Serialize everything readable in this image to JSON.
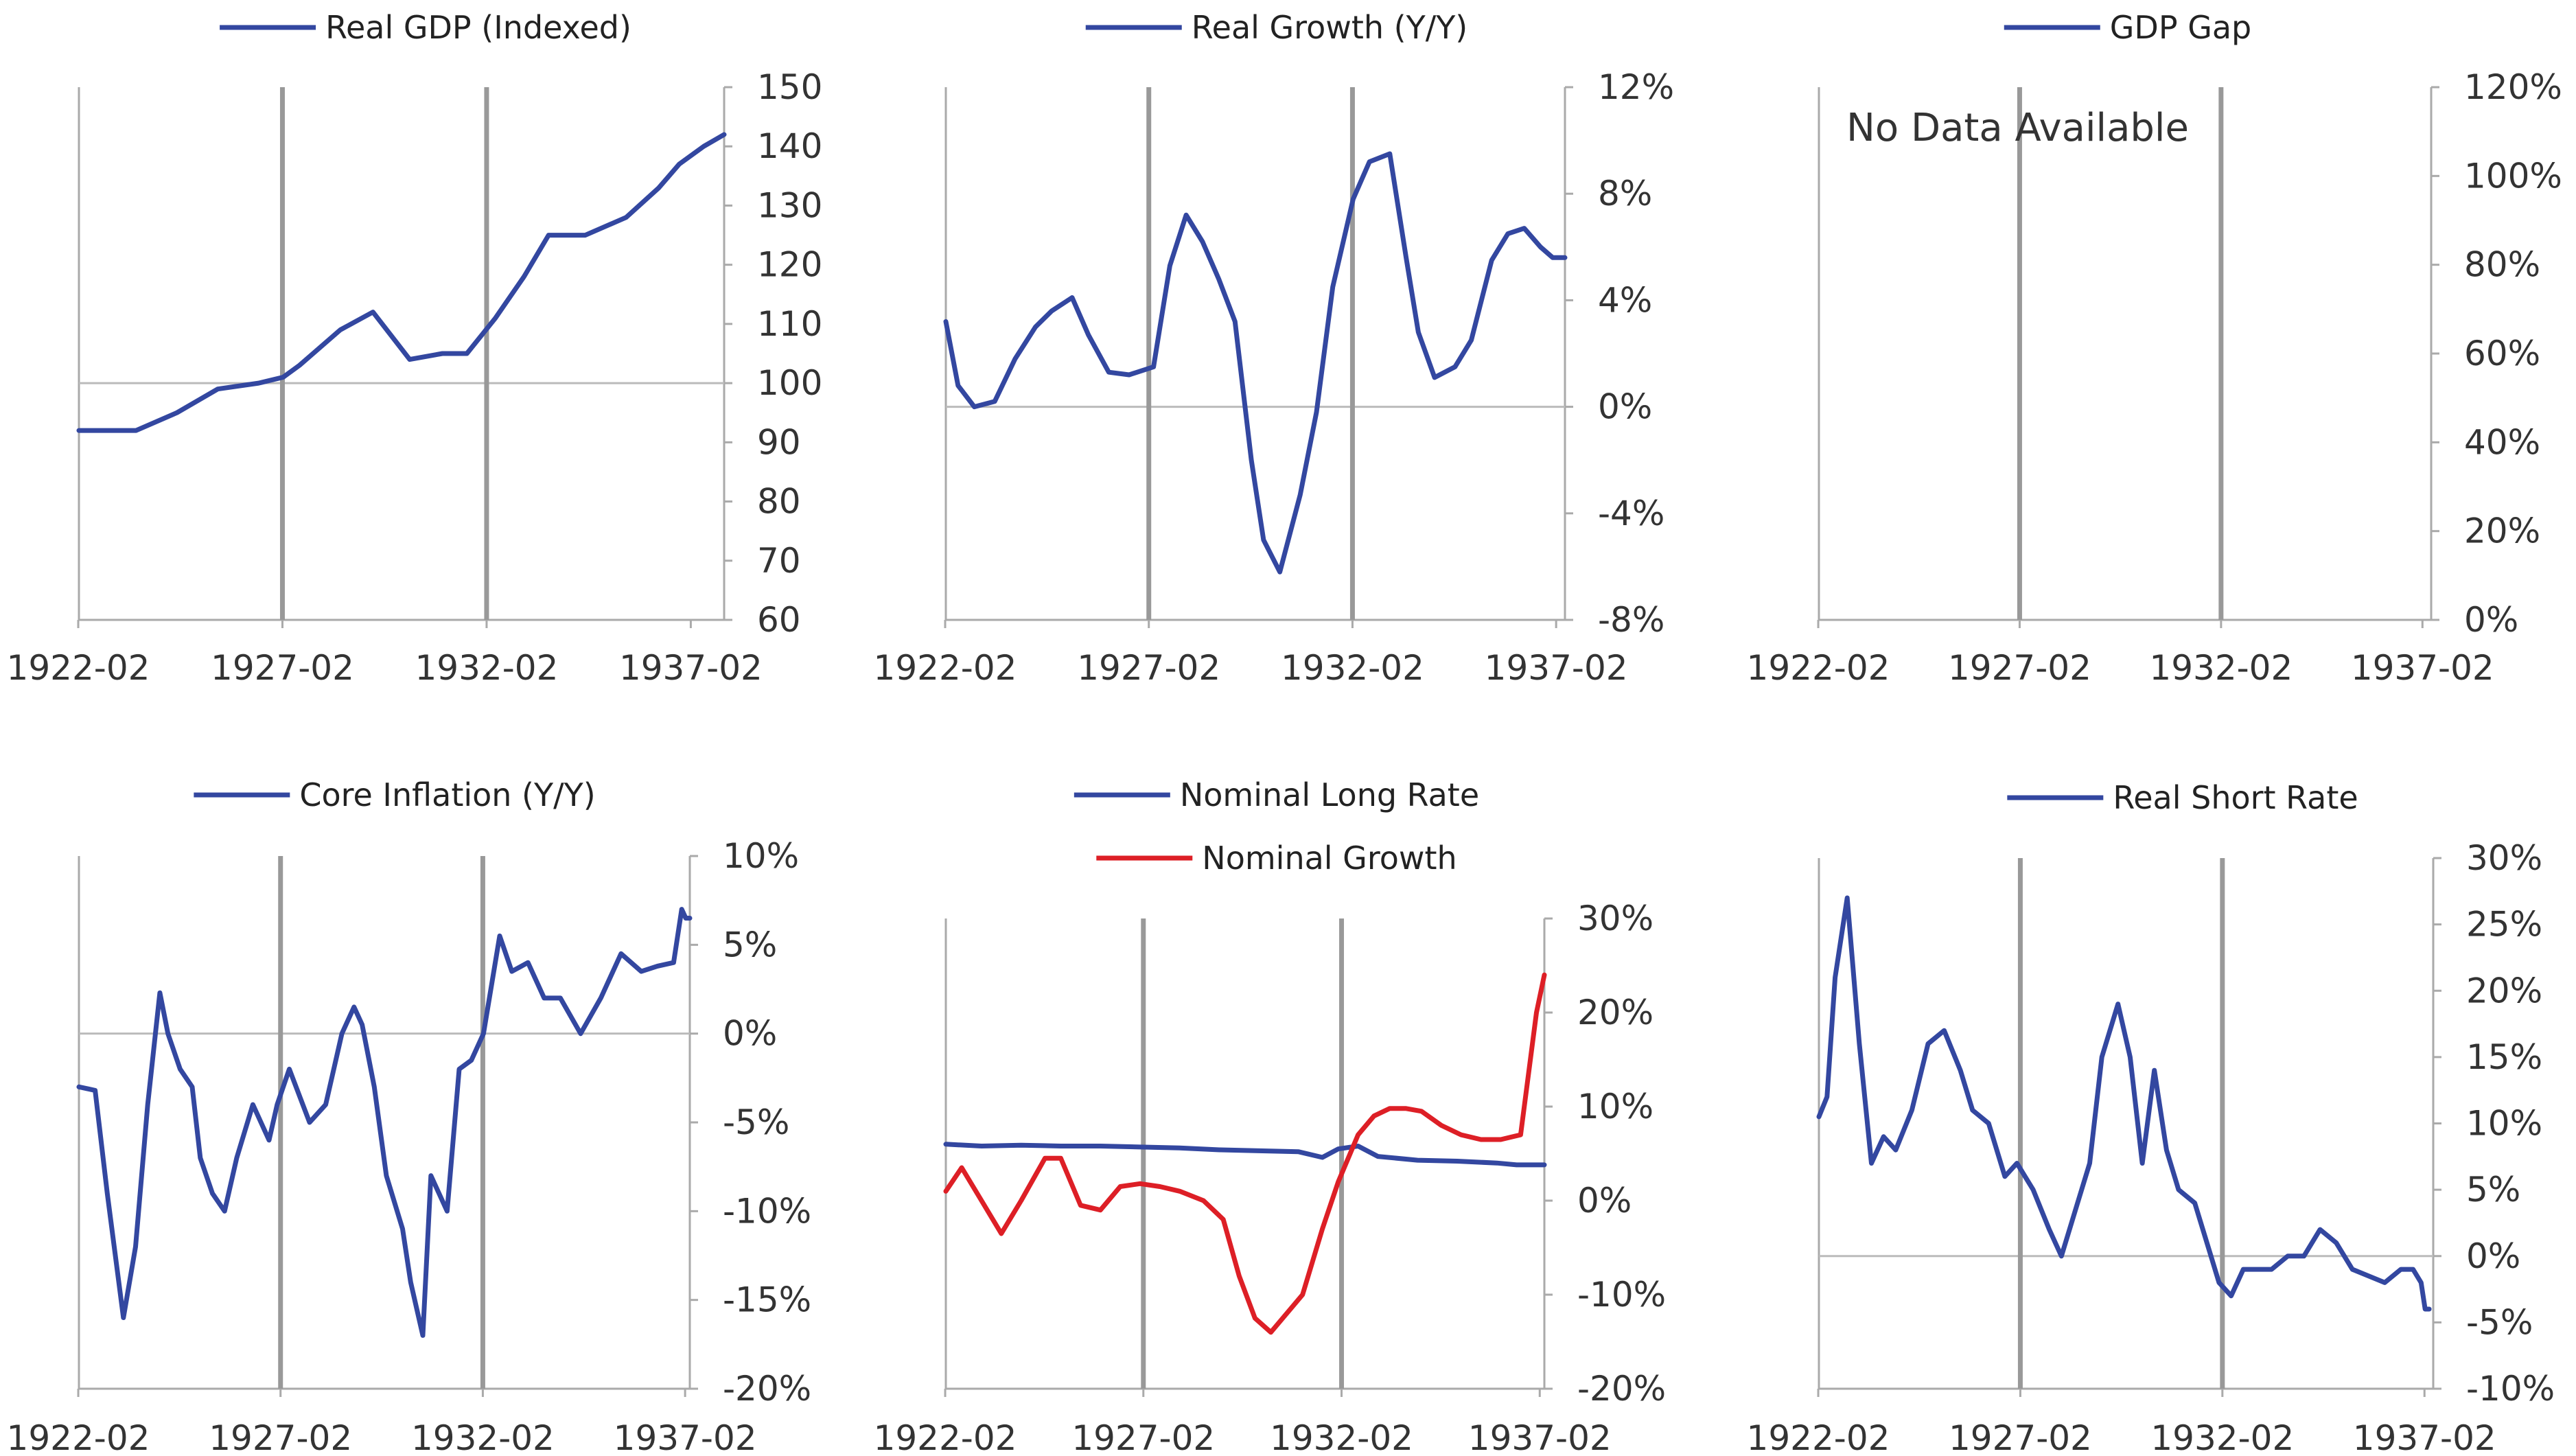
{
  "colors": {
    "blue": "#3347a0",
    "red": "#dd1f26",
    "axis": "#aaaaaa",
    "guide": "#999999",
    "zero": "#bbbbbb"
  },
  "chart_data": [
    {
      "type": "line",
      "x_ticks": [
        "1922-02",
        "1927-02",
        "1932-02",
        "1937-02"
      ],
      "x_range": [
        1922.1,
        1937.9
      ],
      "y_ticks": [
        "60",
        "70",
        "80",
        "90",
        "100",
        "110",
        "120",
        "130",
        "140",
        "150"
      ],
      "ylim": [
        60,
        150
      ],
      "baseline": 100,
      "no_data_text": "",
      "series": [
        {
          "name": "Real GDP (Indexed)",
          "color": "#3347a0",
          "x": [
            1922.1,
            1923.5,
            1924.5,
            1925.5,
            1926.5,
            1927.1,
            1927.5,
            1928.5,
            1929.3,
            1930.2,
            1931.0,
            1931.6,
            1932.3,
            1933.0,
            1933.6,
            1934.5,
            1935.5,
            1936.3,
            1936.8,
            1937.4,
            1937.9
          ],
          "y": [
            92,
            92,
            95,
            99,
            100,
            101,
            103,
            109,
            112,
            104,
            105,
            105,
            111,
            118,
            125,
            125,
            128,
            133,
            137,
            140,
            142
          ]
        }
      ]
    },
    {
      "type": "line",
      "x_ticks": [
        "1922-02",
        "1927-02",
        "1932-02",
        "1937-02"
      ],
      "x_range": [
        1922.1,
        1937.3
      ],
      "y_ticks": [
        "-8%",
        "-4%",
        "0%",
        "4%",
        "8%",
        "12%"
      ],
      "ylim": [
        -8,
        12
      ],
      "baseline": 0,
      "no_data_text": "",
      "series": [
        {
          "name": "Real Growth (Y/Y)",
          "color": "#3347a0",
          "x": [
            1922.1,
            1922.4,
            1922.8,
            1923.3,
            1923.8,
            1924.3,
            1924.7,
            1925.2,
            1925.6,
            1926.1,
            1926.6,
            1927.2,
            1927.6,
            1928.0,
            1928.4,
            1928.8,
            1929.2,
            1929.6,
            1929.9,
            1930.3,
            1930.8,
            1931.2,
            1931.6,
            1932.1,
            1932.5,
            1933.0,
            1933.4,
            1933.7,
            1934.1,
            1934.6,
            1935.0,
            1935.5,
            1935.9,
            1936.3,
            1936.7,
            1937.0,
            1937.3
          ],
          "y": [
            3.2,
            0.8,
            0.0,
            0.2,
            1.8,
            3.0,
            3.6,
            4.1,
            2.7,
            1.3,
            1.2,
            1.5,
            5.3,
            7.2,
            6.2,
            4.8,
            3.2,
            -2.0,
            -5.0,
            -6.2,
            -3.3,
            -0.2,
            4.5,
            7.8,
            9.2,
            9.5,
            5.6,
            2.8,
            1.1,
            1.5,
            2.5,
            5.5,
            6.5,
            6.7,
            6.0,
            5.6,
            5.6
          ]
        }
      ]
    },
    {
      "type": "line",
      "x_ticks": [
        "1922-02",
        "1927-02",
        "1932-02",
        "1937-02"
      ],
      "x_range": [
        1922.1,
        1937.3
      ],
      "y_ticks": [
        "0%",
        "20%",
        "40%",
        "60%",
        "80%",
        "100%",
        "120%"
      ],
      "ylim": [
        0,
        120
      ],
      "baseline": null,
      "no_data_text": "No Data Available",
      "series": [
        {
          "name": "GDP Gap",
          "color": "#3347a0",
          "x": [],
          "y": []
        }
      ]
    },
    {
      "type": "line",
      "x_ticks": [
        "1922-02",
        "1927-02",
        "1932-02",
        "1937-02"
      ],
      "x_range": [
        1922.1,
        1937.2
      ],
      "y_ticks": [
        "-20%",
        "-15%",
        "-10%",
        "-5%",
        "0%",
        "5%",
        "10%"
      ],
      "ylim": [
        -20,
        10
      ],
      "baseline": 0,
      "no_data_text": "",
      "series": [
        {
          "name": "Core Inflation (Y/Y)",
          "color": "#3347a0",
          "x": [
            1922.1,
            1922.5,
            1922.8,
            1923.2,
            1923.5,
            1923.8,
            1924.1,
            1924.3,
            1924.6,
            1924.9,
            1925.1,
            1925.4,
            1925.7,
            1926.0,
            1926.4,
            1926.8,
            1927.0,
            1927.3,
            1927.8,
            1928.2,
            1928.6,
            1928.9,
            1929.1,
            1929.4,
            1929.7,
            1930.1,
            1930.3,
            1930.6,
            1930.8,
            1931.2,
            1931.5,
            1931.8,
            1932.1,
            1932.5,
            1932.8,
            1933.2,
            1933.6,
            1934.0,
            1934.5,
            1935.0,
            1935.5,
            1936.0,
            1936.4,
            1936.8,
            1937.0,
            1937.1,
            1937.2
          ],
          "y": [
            -3,
            -3.2,
            -9,
            -16,
            -12,
            -4,
            2.3,
            0,
            -2,
            -3,
            -7,
            -9,
            -10,
            -7,
            -4,
            -6,
            -4,
            -2,
            -5,
            -4,
            0,
            1.5,
            0.5,
            -3,
            -8,
            -11,
            -14,
            -17,
            -8,
            -10,
            -2,
            -1.5,
            0,
            5.5,
            3.5,
            4,
            2,
            2,
            0,
            2,
            4.5,
            3.5,
            3.8,
            4,
            7,
            6.5,
            6.5
          ]
        }
      ]
    },
    {
      "type": "line",
      "x_ticks": [
        "1922-02",
        "1927-02",
        "1932-02",
        "1937-02"
      ],
      "x_range": [
        1922.1,
        1937.2
      ],
      "y_ticks": [
        "-20%",
        "-10%",
        "0%",
        "10%",
        "20%",
        "30%"
      ],
      "ylim": [
        -20,
        30
      ],
      "baseline": null,
      "no_data_text": "",
      "series": [
        {
          "name": "Nominal Long Rate",
          "color": "#3347a0",
          "x": [
            1922.1,
            1923.0,
            1924.0,
            1925.0,
            1926.0,
            1927.0,
            1928.0,
            1929.0,
            1930.0,
            1931.0,
            1931.6,
            1932.0,
            1932.5,
            1933.0,
            1934.0,
            1935.0,
            1936.0,
            1936.5,
            1937.0,
            1937.2
          ],
          "y": [
            6.0,
            5.8,
            5.9,
            5.8,
            5.8,
            5.7,
            5.6,
            5.4,
            5.3,
            5.2,
            4.6,
            5.5,
            5.8,
            4.7,
            4.3,
            4.2,
            4.0,
            3.8,
            3.8,
            3.8
          ]
        },
        {
          "name": "Nominal Growth",
          "color": "#dd1f26",
          "x": [
            1922.1,
            1922.5,
            1923.0,
            1923.5,
            1924.0,
            1924.6,
            1925.0,
            1925.5,
            1926.0,
            1926.5,
            1927.0,
            1927.5,
            1928.0,
            1928.6,
            1929.1,
            1929.5,
            1929.9,
            1930.3,
            1930.7,
            1931.1,
            1931.6,
            1932.0,
            1932.5,
            1932.9,
            1933.3,
            1933.7,
            1934.1,
            1934.6,
            1935.1,
            1935.6,
            1936.1,
            1936.6,
            1937.0,
            1937.2
          ],
          "y": [
            1.0,
            3.5,
            0,
            -3.5,
            0,
            4.5,
            4.5,
            -0.5,
            -1.0,
            1.5,
            1.8,
            1.5,
            1.0,
            0,
            -2,
            -8,
            -12.5,
            -14,
            -12,
            -10,
            -3,
            2,
            7,
            9,
            9.8,
            9.8,
            9.5,
            8.0,
            7.0,
            6.5,
            6.5,
            7.0,
            20,
            24
          ]
        }
      ]
    },
    {
      "type": "line",
      "x_ticks": [
        "1922-02",
        "1927-02",
        "1932-02",
        "1937-02"
      ],
      "x_range": [
        1922.1,
        1937.3
      ],
      "y_ticks": [
        "-10%",
        "-5%",
        "0%",
        "5%",
        "10%",
        "15%",
        "20%",
        "25%",
        "30%"
      ],
      "ylim": [
        -10,
        30
      ],
      "baseline": 0,
      "no_data_text": "",
      "series": [
        {
          "name": "Real Short Rate",
          "color": "#3347a0",
          "x": [
            1922.1,
            1922.3,
            1922.5,
            1922.8,
            1923.1,
            1923.4,
            1923.7,
            1924.0,
            1924.4,
            1924.8,
            1925.2,
            1925.6,
            1925.9,
            1926.3,
            1926.7,
            1927.0,
            1927.4,
            1927.8,
            1928.1,
            1928.5,
            1928.8,
            1929.1,
            1929.5,
            1929.8,
            1930.1,
            1930.4,
            1930.7,
            1931.0,
            1931.4,
            1931.8,
            1932.0,
            1932.3,
            1932.6,
            1932.9,
            1933.3,
            1933.7,
            1934.1,
            1934.5,
            1934.9,
            1935.3,
            1935.7,
            1936.1,
            1936.5,
            1936.8,
            1937.0,
            1937.1,
            1937.2
          ],
          "y": [
            10.5,
            12,
            21,
            27,
            16,
            7,
            9,
            8,
            11,
            16,
            17,
            14,
            11,
            10,
            6,
            7,
            5,
            2,
            0,
            4,
            7,
            15,
            19,
            15,
            7,
            14,
            8,
            5,
            4,
            0,
            -2,
            -3,
            -1,
            -1,
            -1,
            0,
            0,
            2,
            1,
            -1,
            -1.5,
            -2,
            -1,
            -1,
            -2,
            -4,
            -4
          ]
        }
      ]
    }
  ]
}
